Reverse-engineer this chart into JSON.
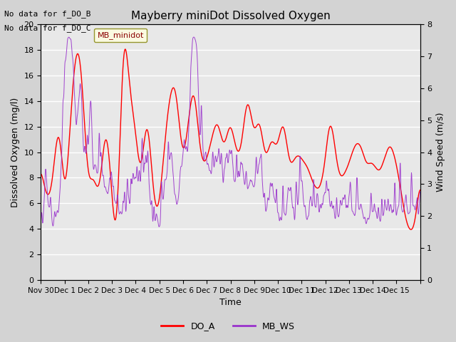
{
  "title": "Mayberry miniDot Dissolved Oxygen",
  "xlabel": "Time",
  "ylabel_left": "Dissolved Oxygen (mg/l)",
  "ylabel_right": "Wind Speed (m/s)",
  "annotation_lines": [
    "No data for f_DO_B",
    "No data for f_DO_C"
  ],
  "legend_box_label": "MB_minidot",
  "legend_entries": [
    "DO_A",
    "MB_WS"
  ],
  "do_color": "#ff0000",
  "ws_color": "#9932cc",
  "ylim_left": [
    0,
    20
  ],
  "ylim_right": [
    0.0,
    8.0
  ],
  "yticks_left": [
    0,
    2,
    4,
    6,
    8,
    10,
    12,
    14,
    16,
    18,
    20
  ],
  "yticks_right": [
    0.0,
    1.0,
    2.0,
    3.0,
    4.0,
    5.0,
    6.0,
    7.0,
    8.0
  ],
  "xtick_positions": [
    0,
    1,
    2,
    3,
    4,
    5,
    6,
    7,
    8,
    9,
    10,
    11,
    12,
    13,
    14,
    15,
    16
  ],
  "xtick_labels": [
    "Nov 30",
    "Dec 1",
    "Dec 2",
    "Dec 3",
    "Dec 4",
    "Dec 5",
    "Dec 6",
    "Dec 7",
    "Dec 8",
    "Dec 9",
    "Dec 10",
    "Dec 11",
    "Dec 12",
    "Dec 13",
    "Dec 14",
    "Dec 15",
    ""
  ],
  "background_color": "#d3d3d3",
  "plot_bg_color": "#e8e8e8",
  "grid_color": "#ffffff",
  "figsize": [
    6.4,
    4.8
  ],
  "dpi": 100
}
